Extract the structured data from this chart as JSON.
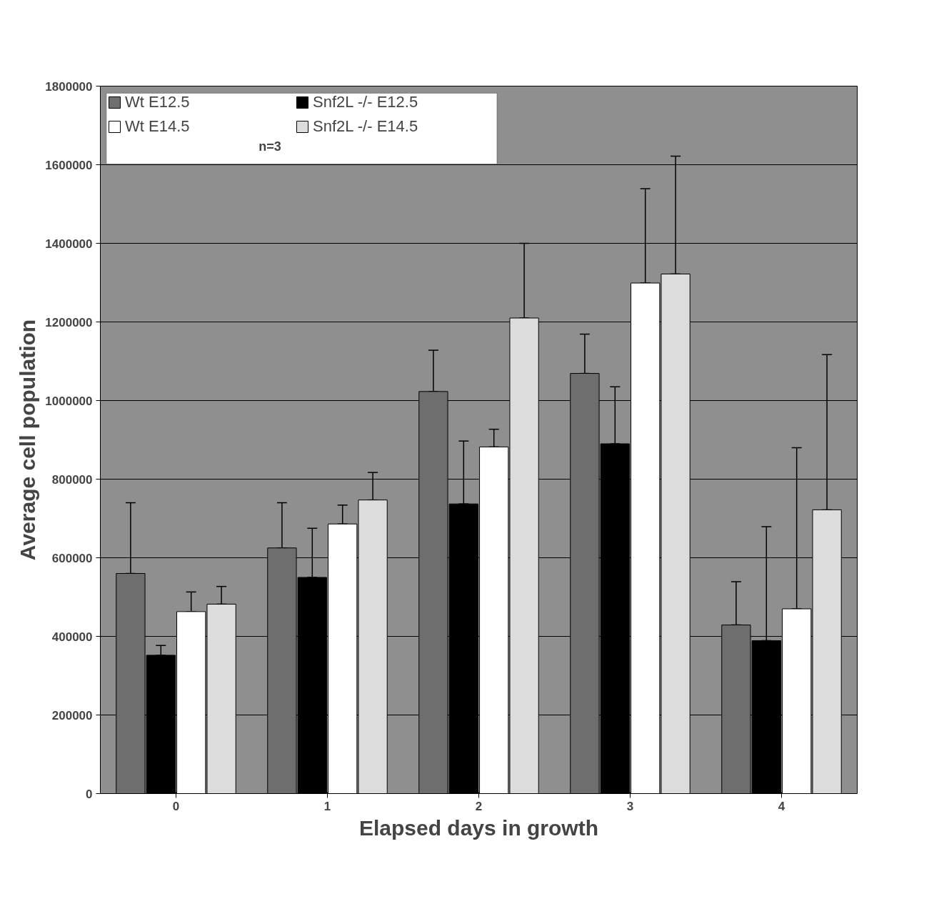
{
  "chart_data": {
    "type": "bar",
    "xlabel": "Elapsed days in growth",
    "ylabel": "Average cell population",
    "categories": [
      "0",
      "1",
      "2",
      "3",
      "4"
    ],
    "ylim": [
      0,
      1800000
    ],
    "yticks": [
      0,
      200000,
      400000,
      600000,
      800000,
      1000000,
      1200000,
      1400000,
      1600000,
      1800000
    ],
    "grid": "y",
    "legend": "top left",
    "annotations": [
      "n=3"
    ],
    "series": [
      {
        "name": "Wt E12.5",
        "color": "#6e6e6e",
        "values": [
          560000,
          625000,
          1023000,
          1069000,
          429000
        ],
        "errors": [
          [
            560000,
            740000
          ],
          [
            625000,
            740000
          ],
          [
            1023000,
            1128000
          ],
          [
            1069000,
            1169000
          ],
          [
            429000,
            539000
          ]
        ]
      },
      {
        "name": "Snf2L -/- E12.5",
        "color": "#000000",
        "values": [
          352000,
          550000,
          737000,
          890000,
          389000
        ],
        "errors": [
          [
            352000,
            377000
          ],
          [
            550000,
            675000
          ],
          [
            737000,
            897000
          ],
          [
            890000,
            1035000
          ],
          [
            389000,
            679000
          ]
        ]
      },
      {
        "name": "Wt E14.5",
        "color": "#ffffff",
        "values": [
          463000,
          686000,
          882000,
          1299000,
          470000
        ],
        "errors": [
          [
            463000,
            513000
          ],
          [
            686000,
            734000
          ],
          [
            882000,
            927000
          ],
          [
            1299000,
            1539000
          ],
          [
            470000,
            880000
          ]
        ]
      },
      {
        "name": "Snf2L -/- E14.5",
        "color": "#dcdcdc",
        "values": [
          482000,
          747000,
          1210000,
          1322000,
          722000
        ],
        "errors": [
          [
            482000,
            527000
          ],
          [
            747000,
            817000
          ],
          [
            1210000,
            1400000
          ],
          [
            1322000,
            1622000
          ],
          [
            722000,
            1117000
          ]
        ]
      }
    ]
  }
}
